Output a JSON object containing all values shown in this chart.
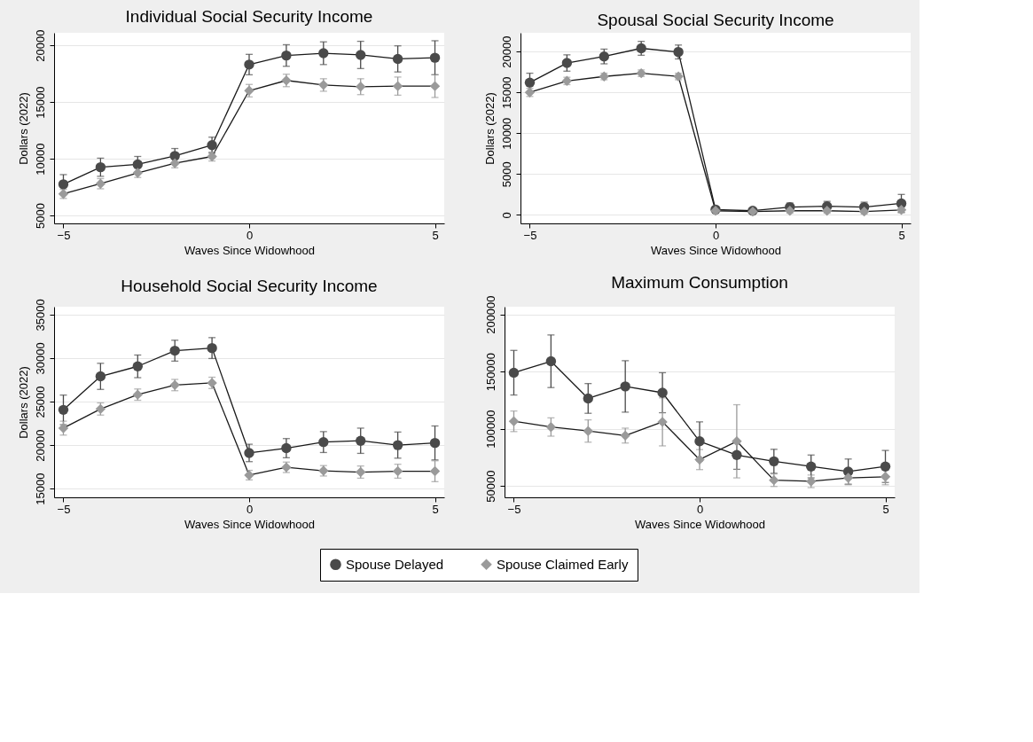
{
  "chart_data": [
    {
      "type": "line",
      "title": "Individual Social Security Income",
      "xlabel": "Waves Since Widowhood",
      "ylabel": "Dollars (2022)",
      "x": [
        -5,
        -4,
        -3,
        -2,
        -1,
        0,
        1,
        2,
        3,
        4,
        5
      ],
      "xlim": [
        -5.25,
        5.25
      ],
      "xticks": [
        -5,
        0,
        5
      ],
      "ylim": [
        4300,
        21100
      ],
      "yticks": [
        5000,
        10000,
        15000,
        20000
      ],
      "grid": "y",
      "legend": "bottom",
      "line_style": "solid",
      "series": [
        {
          "name": "Spouse Delayed",
          "color": "#4a4a4a",
          "marker": "circle",
          "values": [
            7750,
            9250,
            9500,
            10250,
            11200,
            18300,
            19100,
            19300,
            19150,
            18800,
            18900
          ],
          "errors": [
            850,
            800,
            700,
            650,
            700,
            900,
            950,
            1000,
            1200,
            1150,
            1500
          ]
        },
        {
          "name": "Spouse Claimed Early",
          "color": "#9a9a9a",
          "marker": "diamond",
          "values": [
            6900,
            7800,
            8750,
            9600,
            10200,
            16000,
            16900,
            16500,
            16350,
            16400,
            16400
          ],
          "errors": [
            400,
            450,
            400,
            400,
            400,
            550,
            550,
            550,
            700,
            800,
            1000
          ]
        }
      ]
    },
    {
      "type": "line",
      "title": "Spousal Social Security Income",
      "xlabel": "Waves Since Widowhood",
      "ylabel": "Dollars (2022)",
      "x": [
        -5,
        -4,
        -3,
        -2,
        -1,
        0,
        1,
        2,
        3,
        4,
        5
      ],
      "xlim": [
        -5.25,
        5.25
      ],
      "xticks": [
        -5,
        0,
        5
      ],
      "ylim": [
        -1050,
        22300
      ],
      "yticks": [
        0,
        5000,
        10000,
        15000,
        20000
      ],
      "grid": "y",
      "line_style": "solid",
      "series": [
        {
          "color": "#4a4a4a",
          "marker": "circle",
          "values": [
            16200,
            18600,
            19400,
            20400,
            19950,
            650,
            500,
            950,
            1050,
            950,
            1400
          ],
          "errors": [
            1150,
            1000,
            900,
            850,
            850,
            300,
            300,
            500,
            600,
            600,
            1100
          ]
        },
        {
          "color": "#9a9a9a",
          "marker": "diamond",
          "values": [
            15000,
            16400,
            16950,
            17350,
            16950,
            500,
            400,
            500,
            500,
            400,
            600
          ],
          "errors": [
            500,
            450,
            400,
            400,
            400,
            300,
            300,
            300,
            300,
            300,
            350
          ]
        }
      ]
    },
    {
      "type": "line",
      "title": "Household Social Security Income",
      "xlabel": "Waves Since Widowhood",
      "ylabel": "Dollars (2022)",
      "x": [
        -5,
        -4,
        -3,
        -2,
        -1,
        0,
        1,
        2,
        3,
        4,
        5
      ],
      "xlim": [
        -5.25,
        5.25
      ],
      "xticks": [
        -5,
        0,
        5
      ],
      "ylim": [
        14000,
        35900
      ],
      "yticks": [
        15000,
        20000,
        25000,
        30000,
        35000
      ],
      "grid": "y",
      "line_style": "solid",
      "series": [
        {
          "color": "#4a4a4a",
          "marker": "circle",
          "values": [
            24050,
            27900,
            29050,
            30850,
            31150,
            19100,
            19650,
            20350,
            20500,
            20000,
            20250
          ],
          "errors": [
            1700,
            1500,
            1300,
            1200,
            1200,
            1000,
            1100,
            1200,
            1450,
            1500,
            1950
          ]
        },
        {
          "color": "#9a9a9a",
          "marker": "diamond",
          "values": [
            21950,
            24150,
            25800,
            26900,
            27150,
            16550,
            17450,
            17050,
            16900,
            17000,
            17000
          ],
          "errors": [
            800,
            700,
            650,
            650,
            650,
            550,
            600,
            600,
            700,
            800,
            1200
          ]
        }
      ]
    },
    {
      "type": "line",
      "title": "Maximum Consumption",
      "xlabel": "Waves Since Widowhood",
      "x": [
        -5,
        -4,
        -3,
        -2,
        -1,
        0,
        1,
        2,
        3,
        4,
        5
      ],
      "xlim": [
        -5.25,
        5.25
      ],
      "xticks": [
        -5,
        0,
        5
      ],
      "ylim": [
        40000,
        206700
      ],
      "yticks": [
        50000,
        100000,
        150000,
        200000
      ],
      "grid": "y",
      "line_style": "solid",
      "series": [
        {
          "color": "#4a4a4a",
          "marker": "circle",
          "values": [
            149000,
            159000,
            126500,
            137000,
            131500,
            89000,
            77000,
            71500,
            67000,
            62500,
            67000
          ],
          "errors": [
            19500,
            23000,
            13000,
            22500,
            17500,
            17000,
            12500,
            10500,
            10000,
            11000,
            14000
          ]
        },
        {
          "color": "#9a9a9a",
          "marker": "diamond",
          "values": [
            106500,
            101500,
            98000,
            94000,
            106000,
            73000,
            89000,
            55000,
            54000,
            57000,
            58000
          ],
          "errors": [
            9000,
            8000,
            9750,
            6500,
            21000,
            8750,
            32000,
            5500,
            5500,
            6000,
            7000
          ]
        }
      ]
    }
  ]
}
